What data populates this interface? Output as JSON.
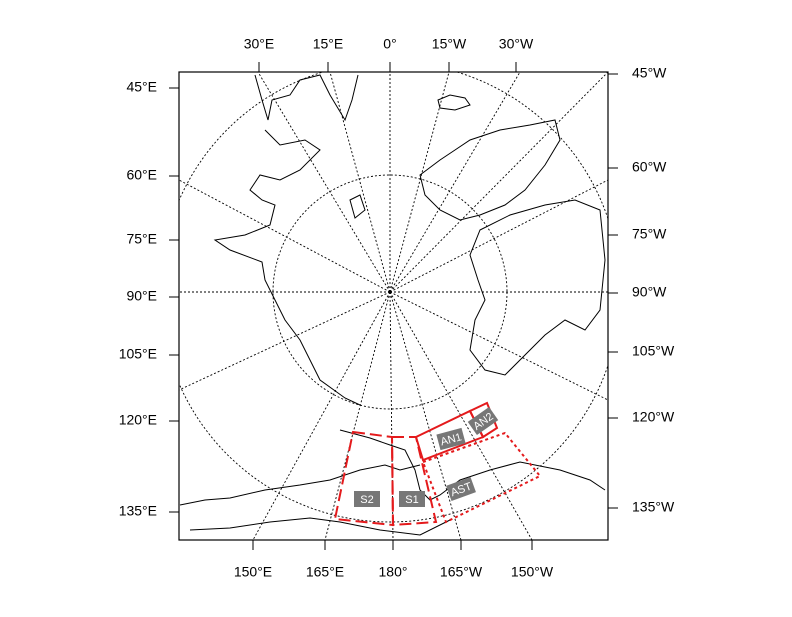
{
  "map": {
    "top_labels": [
      "30°E",
      "15°E",
      "0°",
      "15°W",
      "30°W"
    ],
    "bottom_labels": [
      "150°E",
      "165°E",
      "180°",
      "165°W",
      "150°W"
    ],
    "left_labels": [
      "45°E",
      "60°E",
      "75°E",
      "90°E",
      "105°E",
      "120°E",
      "135°E"
    ],
    "right_labels": [
      "45°W",
      "60°W",
      "75°W",
      "90°W",
      "105°W",
      "120°W",
      "135°W"
    ],
    "regions": [
      {
        "label": "S2"
      },
      {
        "label": "S1"
      },
      {
        "label": "AN1"
      },
      {
        "label": "AN2"
      },
      {
        "label": "AST"
      }
    ]
  }
}
